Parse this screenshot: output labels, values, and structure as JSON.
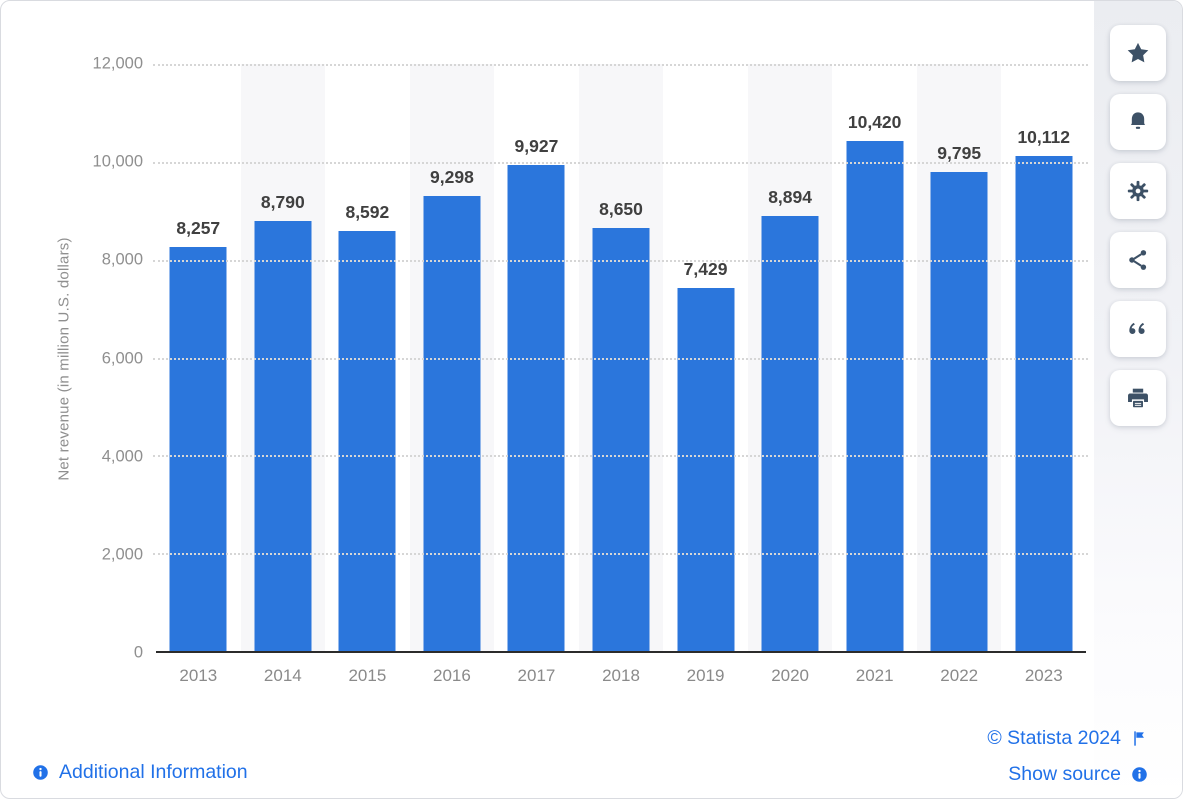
{
  "chart_data": {
    "type": "bar",
    "categories": [
      "2013",
      "2014",
      "2015",
      "2016",
      "2017",
      "2018",
      "2019",
      "2020",
      "2021",
      "2022",
      "2023"
    ],
    "values": [
      8257,
      8790,
      8592,
      9298,
      9927,
      8650,
      7429,
      8894,
      10420,
      9795,
      10112
    ],
    "value_labels": [
      "8,257",
      "8,790",
      "8,592",
      "9,298",
      "9,927",
      "8,650",
      "7,429",
      "8,894",
      "10,420",
      "9,795",
      "10,112"
    ],
    "title": "",
    "xlabel": "",
    "ylabel": "Net revenue (in million U.S. dollars)",
    "ylim": [
      0,
      12000
    ],
    "yticks": [
      0,
      2000,
      4000,
      6000,
      8000,
      10000,
      12000
    ],
    "ytick_labels": [
      "0",
      "2,000",
      "4,000",
      "6,000",
      "8,000",
      "10,000",
      "12,000"
    ],
    "grid": "horizontal-dotted",
    "legend": "none",
    "alternating_column_bands": true
  },
  "colors": {
    "bar": "#2b76dc",
    "column_band": "#f7f7f9",
    "grid_dots": "#d6d6d6",
    "axis_line": "#2b2b2b",
    "tick_text": "#8f8f8f",
    "value_label_text": "#404040",
    "link_blue": "#2171e8",
    "toolbar_icon": "#3d5166"
  },
  "toolbar": {
    "buttons": [
      {
        "name": "favorite",
        "icon": "star-icon"
      },
      {
        "name": "notification",
        "icon": "bell-icon"
      },
      {
        "name": "settings",
        "icon": "gear-icon"
      },
      {
        "name": "share",
        "icon": "share-icon"
      },
      {
        "name": "cite",
        "icon": "quote-icon"
      },
      {
        "name": "print",
        "icon": "printer-icon"
      }
    ]
  },
  "footer": {
    "additional_info_label": "Additional Information",
    "copyright": "© Statista 2024",
    "show_source_label": "Show source"
  }
}
